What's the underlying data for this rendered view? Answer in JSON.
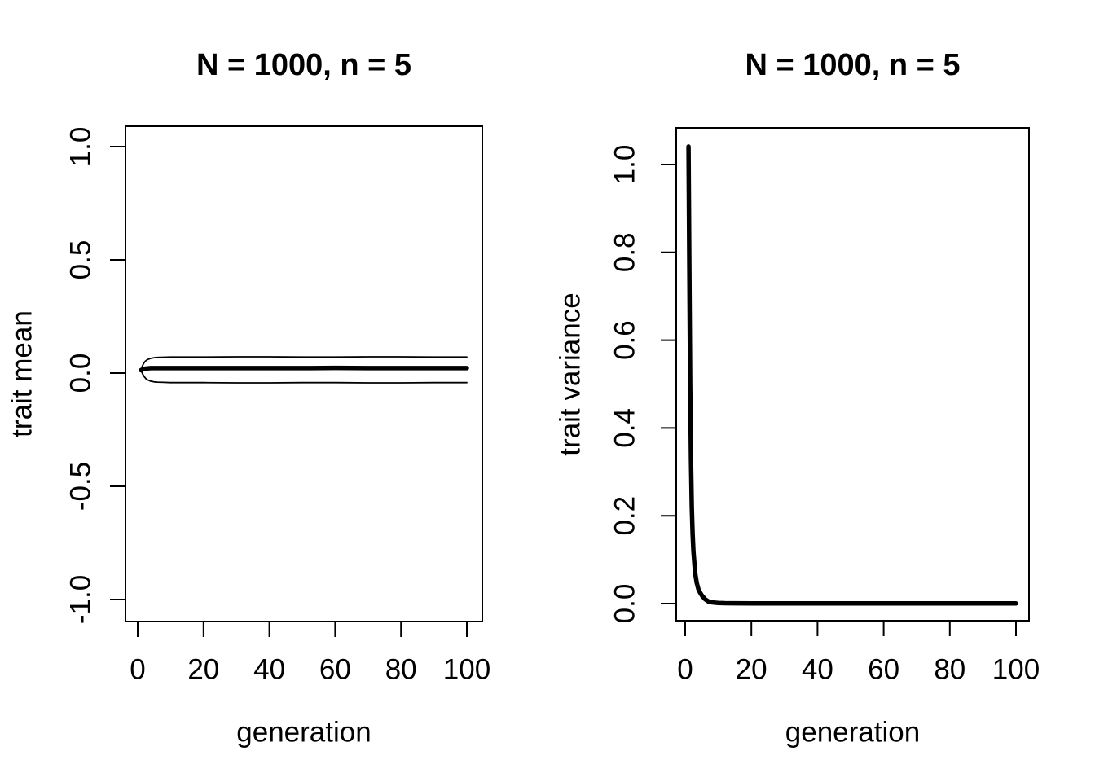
{
  "figure": {
    "background": "#ffffff",
    "foreground": "#000000",
    "description": "Two-panel line chart of simulated trait evolution"
  },
  "chart_data": [
    {
      "type": "line",
      "panel": "left",
      "title": "N = 1000, n = 5",
      "xlabel": "generation",
      "ylabel": "trait mean",
      "xlim": [
        0,
        100
      ],
      "ylim": [
        -1.08,
        1.08
      ],
      "grid": false,
      "legend": null,
      "xticks": {
        "values": [
          0,
          20,
          40,
          60,
          80,
          100
        ],
        "labels": [
          "0",
          "20",
          "40",
          "60",
          "80",
          "100"
        ]
      },
      "yticks": {
        "values": [
          -1,
          -0.5,
          0,
          0.5,
          1
        ],
        "labels": [
          "-1.0",
          "-0.5",
          "0.0",
          "0.5",
          "1.0"
        ]
      },
      "series": [
        {
          "name": "trait-mean",
          "style": "thick",
          "x": [
            1,
            2,
            3,
            4,
            6,
            10,
            15,
            20,
            30,
            40,
            50,
            60,
            70,
            80,
            90,
            100
          ],
          "y": [
            0.013,
            0.019,
            0.021,
            0.022,
            0.022,
            0.022,
            0.022,
            0.022,
            0.022,
            0.022,
            0.022,
            0.023,
            0.022,
            0.022,
            0.022,
            0.022
          ]
        },
        {
          "name": "upper-envelope",
          "style": "thin",
          "x": [
            1,
            1.5,
            2,
            2.5,
            3,
            4,
            5,
            6,
            8,
            10,
            15,
            20,
            30,
            40,
            50,
            60,
            70,
            80,
            90,
            100
          ],
          "y": [
            0.013,
            0.034,
            0.047,
            0.055,
            0.06,
            0.065,
            0.068,
            0.069,
            0.07,
            0.071,
            0.071,
            0.071,
            0.072,
            0.072,
            0.071,
            0.071,
            0.072,
            0.072,
            0.071,
            0.071
          ]
        },
        {
          "name": "lower-envelope",
          "style": "thin",
          "x": [
            1,
            1.5,
            2,
            2.5,
            3,
            4,
            5,
            6,
            8,
            10,
            15,
            20,
            30,
            40,
            50,
            60,
            70,
            80,
            90,
            100
          ],
          "y": [
            0.013,
            -0.004,
            -0.016,
            -0.025,
            -0.03,
            -0.036,
            -0.039,
            -0.04,
            -0.041,
            -0.042,
            -0.042,
            -0.042,
            -0.043,
            -0.043,
            -0.042,
            -0.042,
            -0.043,
            -0.043,
            -0.042,
            -0.042
          ]
        }
      ]
    },
    {
      "type": "line",
      "panel": "right",
      "title": "N = 1000, n = 5",
      "xlabel": "generation",
      "ylabel": "trait variance",
      "xlim": [
        0,
        100
      ],
      "ylim": [
        -0.042,
        1.083
      ],
      "grid": false,
      "legend": null,
      "xticks": {
        "values": [
          0,
          20,
          40,
          60,
          80,
          100
        ],
        "labels": [
          "0",
          "20",
          "40",
          "60",
          "80",
          "100"
        ]
      },
      "yticks": {
        "values": [
          0,
          0.2,
          0.4,
          0.6,
          0.8,
          1
        ],
        "labels": [
          "0.0",
          "0.2",
          "0.4",
          "0.6",
          "0.8",
          "1.0"
        ]
      },
      "series": [
        {
          "name": "trait-variance",
          "style": "thick",
          "x": [
            1,
            1.25,
            1.5,
            1.75,
            2,
            2.25,
            2.5,
            3,
            3.5,
            4,
            4.5,
            5,
            6,
            7,
            8,
            9,
            10,
            12,
            15,
            20,
            25,
            30,
            40,
            50,
            60,
            70,
            80,
            90,
            100
          ],
          "y": [
            1.041,
            0.76,
            0.5,
            0.33,
            0.22,
            0.16,
            0.12,
            0.07,
            0.047,
            0.033,
            0.025,
            0.019,
            0.01,
            0.005,
            0.003,
            0.002,
            0.0015,
            0.001,
            0.0008,
            0.0006,
            0.0005,
            0.0005,
            0.0004,
            0.0004,
            0.0004,
            0.0003,
            0.0003,
            0.0003,
            0.0003
          ]
        }
      ]
    }
  ]
}
